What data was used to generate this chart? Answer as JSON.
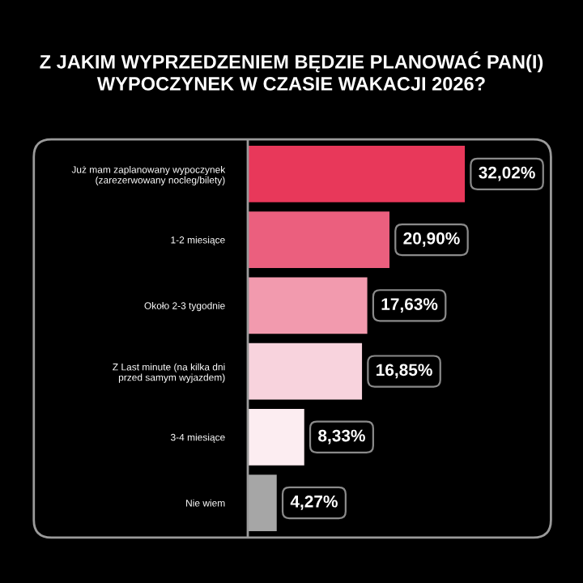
{
  "chart_data": {
    "type": "bar",
    "orientation": "horizontal",
    "title": "Z JAKIM WYPRZEDZENIEM BĘDZIE PLANOWAĆ PAN(I)\nWYPOCZYNEK W CZASIE WAKACJI 2026?",
    "categories": [
      "Już mam zaplanowany wypoczynek\n(zarezerwowany nocleg/bilety)",
      "1-2 miesiące",
      "Około 2-3 tygodnie",
      "Z Last minute (na kilka dni\nprzed samym wyjazdem)",
      "3-4 miesiące",
      "Nie wiem"
    ],
    "values": [
      32.02,
      20.9,
      17.63,
      16.85,
      8.33,
      4.27
    ],
    "colors": [
      "#e8385a",
      "#eb5f7e",
      "#f29aae",
      "#f8d3dd",
      "#fcedf1",
      "#a6a6a6"
    ],
    "value_labels": [
      "32,02%",
      "20,90%",
      "17,63%",
      "16,85%",
      "8,33%",
      "4,27%"
    ],
    "xlim": [
      0,
      43
    ],
    "tick_labels": "y",
    "grid": false,
    "legend": false
  }
}
